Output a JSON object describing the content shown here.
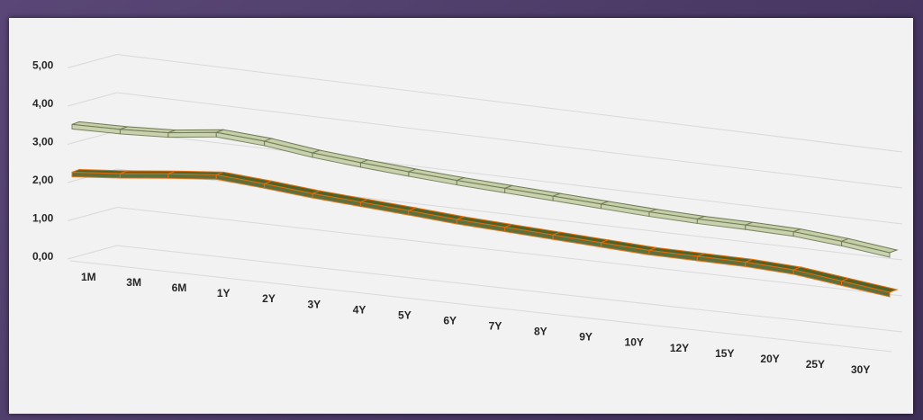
{
  "chart_data": {
    "type": "line",
    "style": "3d",
    "categories": [
      "1M",
      "3M",
      "6M",
      "1Y",
      "2Y",
      "3Y",
      "4Y",
      "5Y",
      "6Y",
      "7Y",
      "8Y",
      "9Y",
      "10Y",
      "12Y",
      "15Y",
      "20Y",
      "25Y",
      "30Y"
    ],
    "series": [
      {
        "values": [
          3.45,
          3.48,
          3.55,
          3.72,
          3.65,
          3.5,
          3.4,
          3.32,
          3.25,
          3.2,
          3.15,
          3.1,
          3.05,
          3.02,
          3.02,
          3.0,
          2.9,
          2.75
        ],
        "color": "#c4cfa8",
        "edge": "#6f7a56"
      },
      {
        "values": [
          2.2,
          2.32,
          2.47,
          2.6,
          2.52,
          2.42,
          2.35,
          2.28,
          2.2,
          2.15,
          2.1,
          2.05,
          2.0,
          2.0,
          2.0,
          1.95,
          1.8,
          1.65
        ],
        "color": "#4f6228",
        "edge": "#e36c09"
      }
    ],
    "y_ticks": [
      "0,00",
      "1,00",
      "2,00",
      "3,00",
      "4,00",
      "5,00"
    ],
    "ylim": [
      0,
      5
    ],
    "grid": true,
    "legend": "none"
  }
}
